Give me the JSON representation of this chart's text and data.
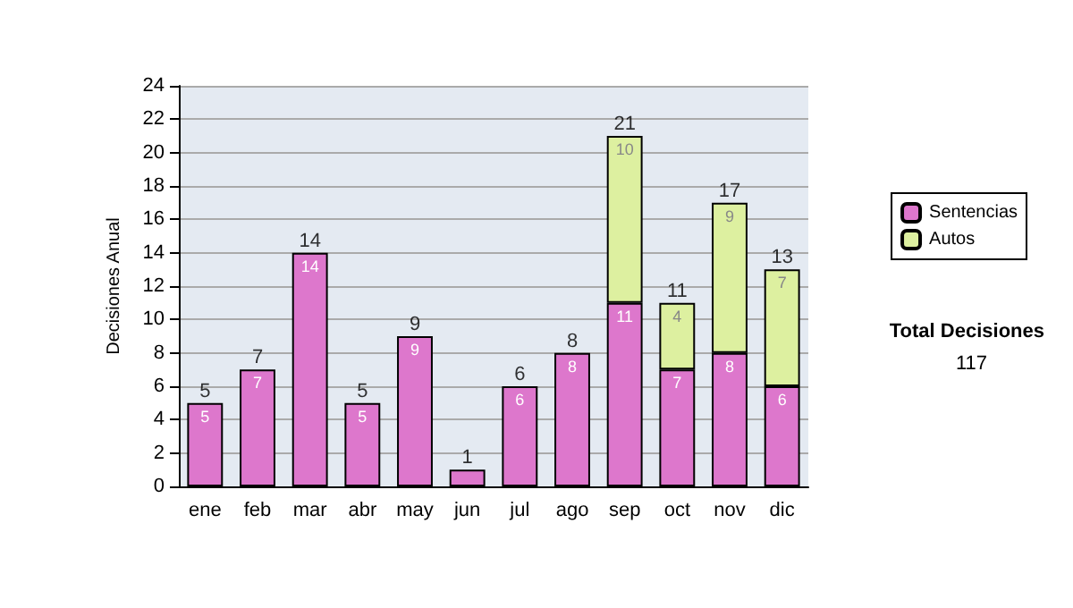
{
  "chart_data": {
    "type": "bar",
    "stacked": true,
    "ylabel": "Decisiones Anual",
    "categories": [
      "ene",
      "feb",
      "mar",
      "abr",
      "may",
      "jun",
      "jul",
      "ago",
      "sep",
      "oct",
      "nov",
      "dic"
    ],
    "series": [
      {
        "name": "Sentencias",
        "color": "#dd77cc",
        "values": [
          5,
          7,
          14,
          5,
          9,
          1,
          6,
          8,
          11,
          7,
          8,
          6
        ],
        "value_labels": [
          "5",
          "7",
          "14",
          "5",
          "9",
          null,
          "6",
          "8",
          "11",
          "7",
          "8",
          "6"
        ]
      },
      {
        "name": "Autos",
        "color": "#ddf0a0",
        "values": [
          null,
          null,
          null,
          null,
          null,
          null,
          null,
          null,
          10,
          4,
          9,
          7
        ]
      }
    ],
    "totals": [
      "5",
      "7",
      "14",
      "5",
      "9",
      "1",
      "6",
      "8",
      "21",
      "11",
      "17",
      "13"
    ],
    "data_labels": true,
    "ylim": [
      0,
      24
    ],
    "yticks": [
      0,
      2,
      4,
      6,
      8,
      10,
      12,
      14,
      16,
      18,
      20,
      22,
      24
    ],
    "grid": "y",
    "legend": "right",
    "annotations": [
      "Total Decisiones",
      "117"
    ]
  }
}
